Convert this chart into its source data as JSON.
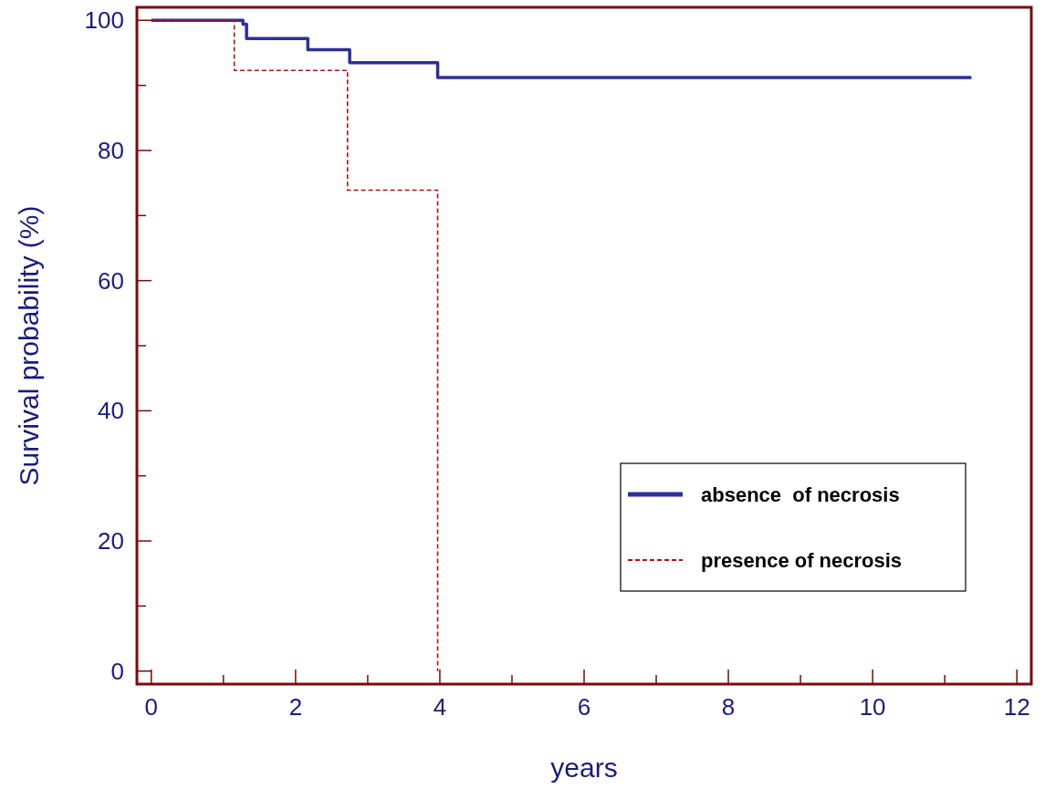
{
  "chart_data": {
    "type": "step",
    "xlabel": "years",
    "ylabel": "Survival probability (%)",
    "xlim": [
      -0.2,
      12.2
    ],
    "ylim": [
      -2,
      102
    ],
    "xticks": [
      0,
      {
        "value": 1,
        "label": null
      },
      2,
      {
        "value": 3,
        "label": null
      },
      4,
      {
        "value": 5,
        "label": null
      },
      6,
      {
        "value": 7,
        "label": null
      },
      8,
      {
        "value": 9,
        "label": null
      },
      10,
      {
        "value": 11,
        "label": null
      },
      12
    ],
    "yticks": [
      0,
      {
        "value": 10,
        "label": null
      },
      20,
      {
        "value": 30,
        "label": null
      },
      40,
      {
        "value": 50,
        "label": null
      },
      60,
      {
        "value": 70,
        "label": null
      },
      80,
      {
        "value": 90,
        "label": null
      },
      100
    ],
    "legend": "bottom right",
    "grid": false,
    "series": [
      {
        "name": "absence  of necrosis",
        "color": "#2e2e9c",
        "line_style": "solid",
        "x": [
          0,
          1.27,
          1.32,
          2.17,
          2.75,
          3.97,
          11.37
        ],
        "values": [
          100,
          99.4,
          97.2,
          95.5,
          93.5,
          91.2,
          91.2
        ]
      },
      {
        "name": "presence of necrosis",
        "color": "#b01010",
        "line_style": "dashed",
        "x": [
          0,
          1.15,
          2.72,
          3.97
        ],
        "values": [
          100,
          92.3,
          73.9,
          0
        ]
      }
    ]
  }
}
